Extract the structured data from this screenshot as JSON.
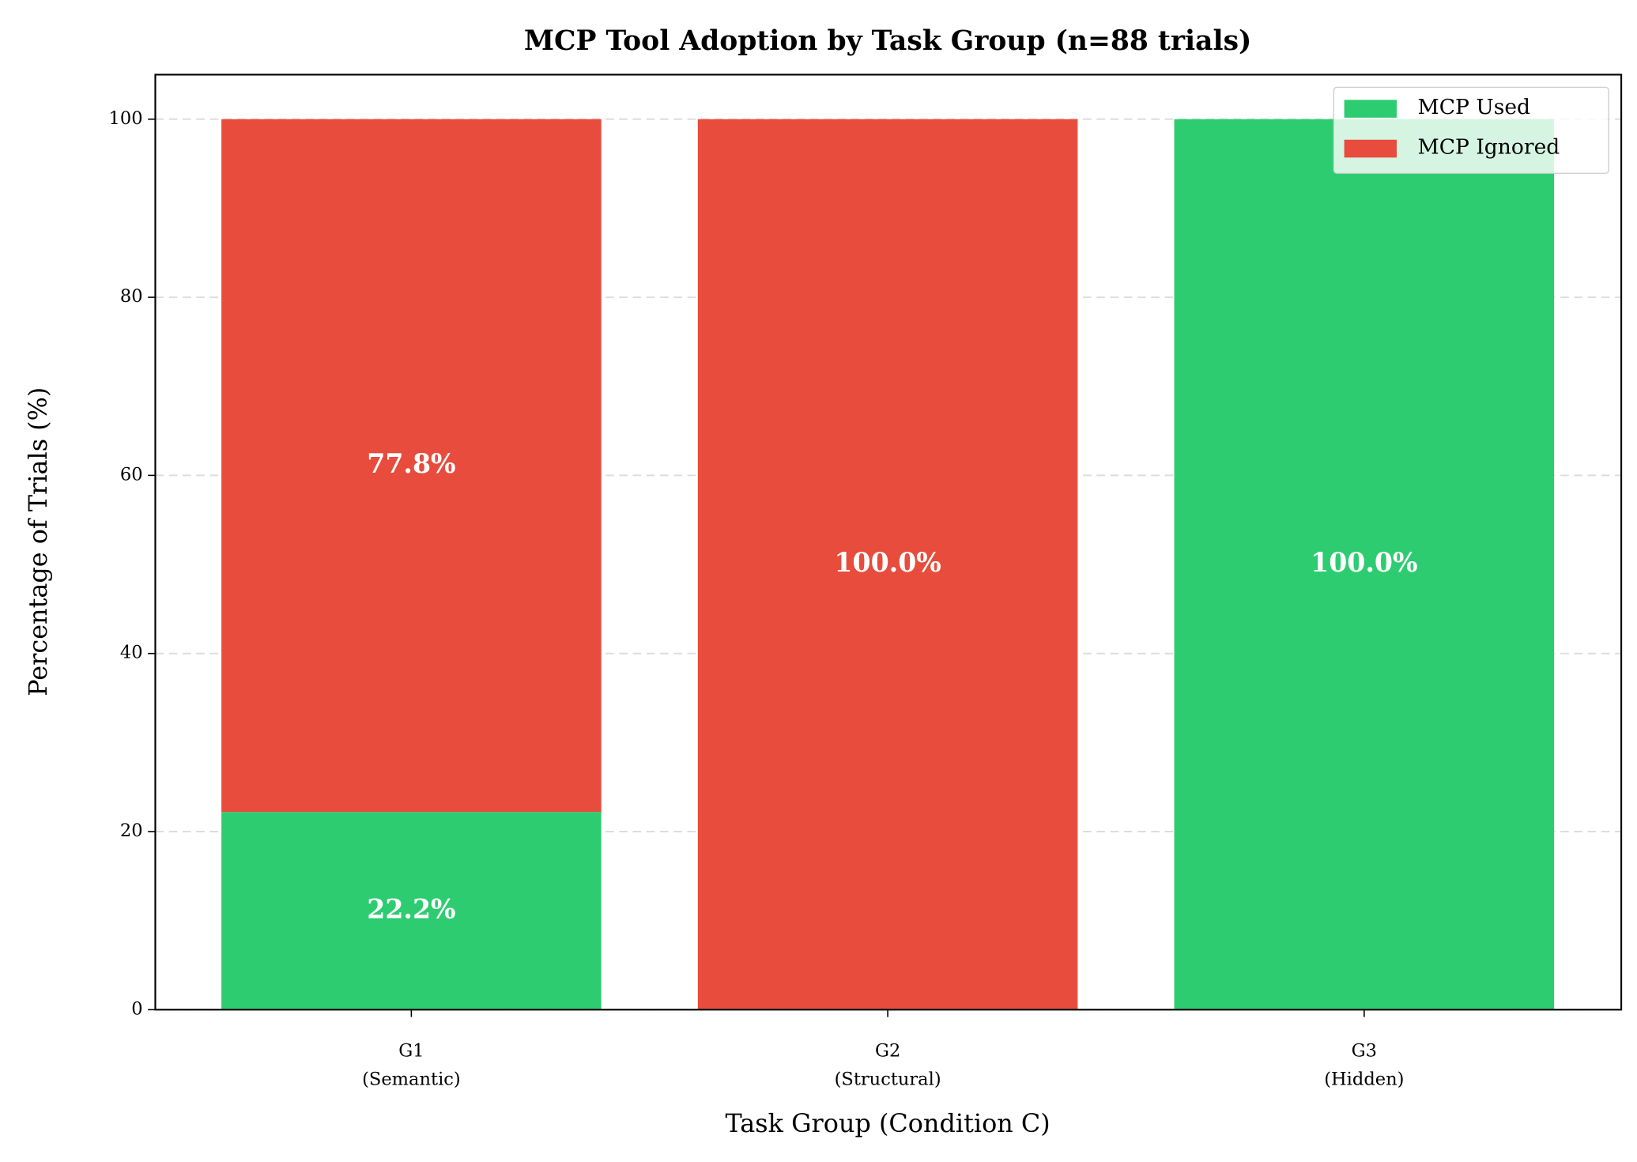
{
  "chart_data": {
    "type": "stacked_bar",
    "title": "MCP Tool Adoption by Task Group (n=88 trials)",
    "xlabel": "Task Group (Condition C)",
    "ylabel": "Percentage of Trials (%)",
    "categories": [
      "G1",
      "G2",
      "G3"
    ],
    "category_sublabels": [
      "(Semantic)",
      "(Structural)",
      "(Hidden)"
    ],
    "series": [
      {
        "name": "MCP Used",
        "color": "#2ecc71",
        "values": [
          22.2,
          0,
          100
        ],
        "value_labels": [
          "22.2%",
          null,
          "100.0%"
        ]
      },
      {
        "name": "MCP Ignored",
        "color": "#e74c3c",
        "values": [
          77.8,
          100,
          0
        ],
        "value_labels": [
          "77.8%",
          "100.0%",
          null
        ]
      }
    ],
    "ylim": [
      0,
      105
    ],
    "yticks": [
      0,
      20,
      40,
      60,
      80,
      100
    ],
    "grid": true,
    "legend": "upper right"
  }
}
